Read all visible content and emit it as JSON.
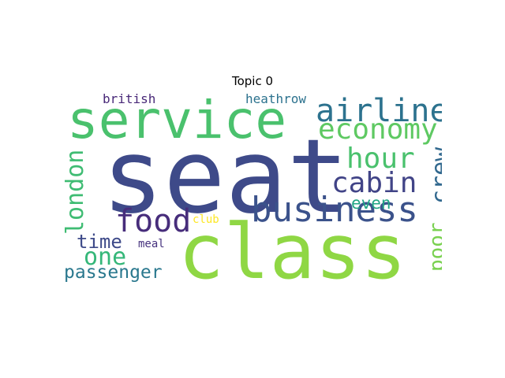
{
  "title": "Topic 0",
  "words": [
    {
      "text": "seat",
      "color": "#3e4a89",
      "orientation": "horizontal"
    },
    {
      "text": "class",
      "color": "#8fd744",
      "orientation": "horizontal"
    },
    {
      "text": "service",
      "color": "#4ac16d",
      "orientation": "horizontal"
    },
    {
      "text": "business",
      "color": "#3b528b",
      "orientation": "horizontal"
    },
    {
      "text": "airline",
      "color": "#2c728e",
      "orientation": "horizontal"
    },
    {
      "text": "economy",
      "color": "#5ec962",
      "orientation": "horizontal"
    },
    {
      "text": "cabin",
      "color": "#414487",
      "orientation": "horizontal"
    },
    {
      "text": "food",
      "color": "#472d7b",
      "orientation": "horizontal"
    },
    {
      "text": "hour",
      "color": "#4ac16d",
      "orientation": "horizontal"
    },
    {
      "text": "crew",
      "color": "#31688e",
      "orientation": "vertical"
    },
    {
      "text": "london",
      "color": "#3fbc73",
      "orientation": "vertical"
    },
    {
      "text": "poor",
      "color": "#7ad151",
      "orientation": "vertical"
    },
    {
      "text": "one",
      "color": "#35b779",
      "orientation": "horizontal"
    },
    {
      "text": "time",
      "color": "#3e4a89",
      "orientation": "horizontal"
    },
    {
      "text": "passenger",
      "color": "#2a788e",
      "orientation": "horizontal"
    },
    {
      "text": "even",
      "color": "#21a585",
      "orientation": "horizontal"
    },
    {
      "text": "british",
      "color": "#482878",
      "orientation": "horizontal"
    },
    {
      "text": "heathrow",
      "color": "#2c728e",
      "orientation": "horizontal"
    },
    {
      "text": "club",
      "color": "#fde725",
      "orientation": "horizontal"
    },
    {
      "text": "meal",
      "color": "#46327e",
      "orientation": "horizontal"
    }
  ]
}
